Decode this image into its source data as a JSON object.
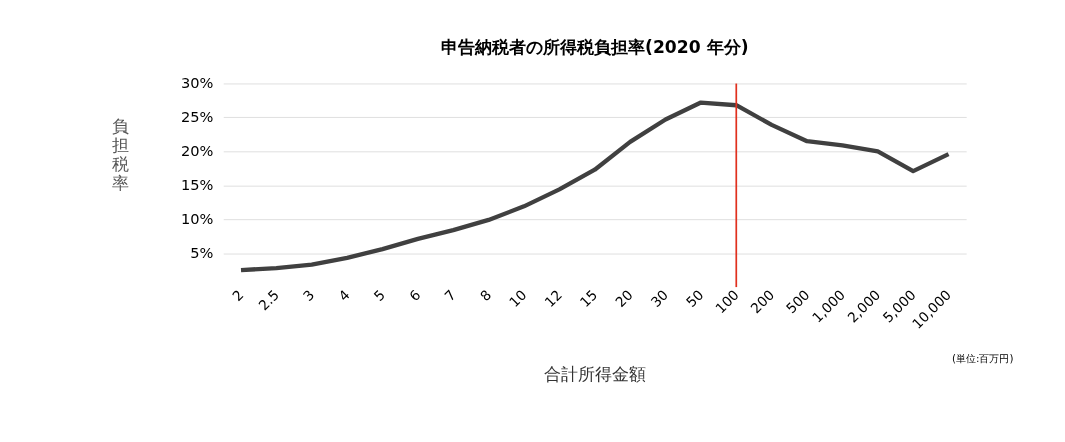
{
  "chart_data": {
    "type": "line",
    "title": "申告納税者の所得税負担率(2020 年分)",
    "xlabel": "合計所得金額",
    "ylabel": "負担税率",
    "categories": [
      "2",
      "2.5",
      "3",
      "4",
      "5",
      "6",
      "7",
      "8",
      "10",
      "12",
      "15",
      "20",
      "30",
      "50",
      "100",
      "200",
      "500",
      "1,000",
      "2,000",
      "5,000",
      "10,000"
    ],
    "series": [
      {
        "color": "#404040",
        "values": [
          2.5,
          2.8,
          3.3,
          4.3,
          5.6,
          7.1,
          8.4,
          9.9,
          11.9,
          14.4,
          17.3,
          21.4,
          24.7,
          27.2,
          26.8,
          23.9,
          21.5,
          20.9,
          20.0,
          17.1,
          19.6
        ]
      }
    ],
    "ylim": [
      0,
      30
    ],
    "yticks": [
      {
        "value": 5,
        "label": "5%"
      },
      {
        "value": 10,
        "label": "10%"
      },
      {
        "value": 15,
        "label": "15%"
      },
      {
        "value": 20,
        "label": "20%"
      },
      {
        "value": 25,
        "label": "25%"
      },
      {
        "value": 30,
        "label": "30%"
      }
    ],
    "ref_lines": [
      {
        "axis": "x",
        "value": "100",
        "color": "#e0301e"
      }
    ],
    "annotations": [
      "(単位:百万円)"
    ],
    "grid": "y",
    "marker": "none",
    "line_style": "solid"
  }
}
